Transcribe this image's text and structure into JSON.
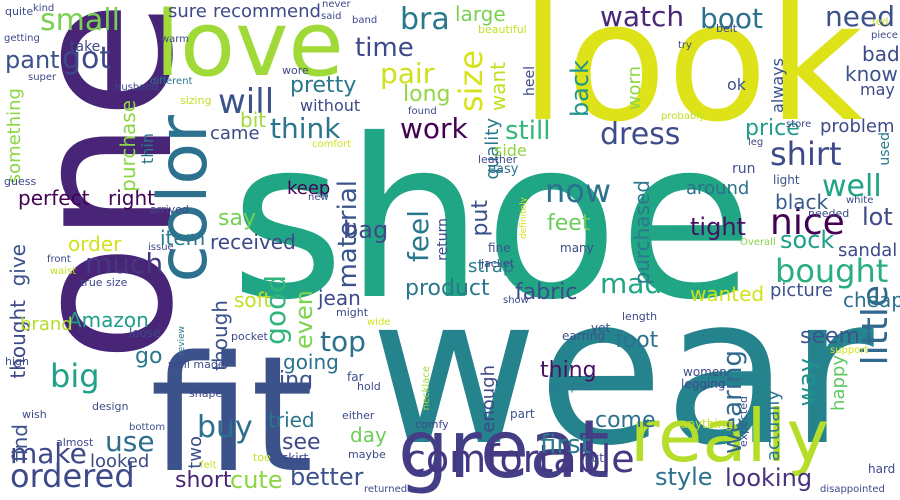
{
  "words": [
    {
      "text": "shoe",
      "color": "#21a685"
    },
    {
      "text": "wear",
      "color": "#25838e"
    },
    {
      "text": "one",
      "color": "#482576"
    },
    {
      "text": "look",
      "color": "#dde318"
    },
    {
      "text": "fit",
      "color": "#3b528b"
    },
    {
      "text": "love",
      "color": "#a0da39"
    },
    {
      "text": "great",
      "color": "#433e85"
    },
    {
      "text": "really",
      "color": "#b5de2b"
    },
    {
      "text": "color",
      "color": "#2c728e"
    },
    {
      "text": "comfortable",
      "color": "#453781"
    },
    {
      "text": "ordered",
      "color": "#3e4989"
    },
    {
      "text": "bought",
      "color": "#29af7f"
    },
    {
      "text": "nice",
      "color": "#440154"
    },
    {
      "text": "little",
      "color": "#31688e"
    },
    {
      "text": "good",
      "color": "#31b57b"
    },
    {
      "text": "size",
      "color": "#d8e219"
    },
    {
      "text": "dress",
      "color": "#3e4c8a"
    },
    {
      "text": "will",
      "color": "#3b528b"
    },
    {
      "text": "now",
      "color": "#2c728e"
    },
    {
      "text": "material",
      "color": "#3a548c"
    },
    {
      "text": "feel",
      "color": "#2a788e"
    },
    {
      "text": "still",
      "color": "#35b779"
    },
    {
      "text": "shirt",
      "color": "#3e4989"
    },
    {
      "text": "well",
      "color": "#20a386"
    },
    {
      "text": "top",
      "color": "#2c728e"
    },
    {
      "text": "work",
      "color": "#440154"
    },
    {
      "text": "think",
      "color": "#2a768e"
    },
    {
      "text": "pair",
      "color": "#d0e11c"
    },
    {
      "text": "time",
      "color": "#3e4a89"
    },
    {
      "text": "much",
      "color": "#453781"
    },
    {
      "text": "big",
      "color": "#1fa088"
    },
    {
      "text": "make",
      "color": "#3e4989"
    },
    {
      "text": "small",
      "color": "#7ad151"
    },
    {
      "text": "got",
      "color": "#3e4989"
    },
    {
      "text": "bra",
      "color": "#29798e"
    },
    {
      "text": "watch",
      "color": "#482878"
    },
    {
      "text": "boot",
      "color": "#2c728e"
    },
    {
      "text": "need",
      "color": "#3b528b"
    },
    {
      "text": "back",
      "color": "#1f968b"
    },
    {
      "text": "wearing",
      "color": "#306a8e"
    },
    {
      "text": "buy",
      "color": "#2e6e8e"
    },
    {
      "text": "made",
      "color": "#22a785"
    },
    {
      "text": "use",
      "color": "#2e6d8e"
    },
    {
      "text": "first",
      "color": "#287c8e"
    },
    {
      "text": "feet",
      "color": "#6ccd5a"
    },
    {
      "text": "even",
      "color": "#7fd34e"
    },
    {
      "text": "style",
      "color": "#2d718e"
    },
    {
      "text": "looking",
      "color": "#46327e"
    },
    {
      "text": "better",
      "color": "#3b528b"
    },
    {
      "text": "short",
      "color": "#482475"
    },
    {
      "text": "cute",
      "color": "#8bd646"
    },
    {
      "text": "see",
      "color": "#3e4a89"
    },
    {
      "text": "day",
      "color": "#6ece58"
    },
    {
      "text": "come",
      "color": "#2d708e"
    },
    {
      "text": "tried",
      "color": "#2a768e"
    },
    {
      "text": "thing",
      "color": "#471063"
    },
    {
      "text": "foot",
      "color": "#2c728e"
    },
    {
      "text": "product",
      "color": "#2a788e"
    },
    {
      "text": "fabric",
      "color": "#3e4989"
    },
    {
      "text": "tight",
      "color": "#471164"
    },
    {
      "text": "black",
      "color": "#375a8c"
    },
    {
      "text": "sock",
      "color": "#1f9e89"
    },
    {
      "text": "way",
      "color": "#20928c"
    },
    {
      "text": "seem",
      "color": "#3b528b"
    },
    {
      "text": "price",
      "color": "#1f9e89"
    },
    {
      "text": "right",
      "color": "#440154"
    },
    {
      "text": "perfect",
      "color": "#440154"
    },
    {
      "text": "item",
      "color": "#2a788e"
    },
    {
      "text": "order",
      "color": "#d2e21b"
    },
    {
      "text": "received",
      "color": "#3e4989"
    },
    {
      "text": "say",
      "color": "#73d056"
    },
    {
      "text": "Amazon",
      "color": "#1f9e89"
    },
    {
      "text": "ring",
      "color": "#3b528b"
    },
    {
      "text": "go",
      "color": "#2a788e"
    },
    {
      "text": "bag",
      "color": "#3e4a89"
    },
    {
      "text": "pretty",
      "color": "#2a788e"
    },
    {
      "text": "pant",
      "color": "#3b528b"
    },
    {
      "text": "quality",
      "color": "#2a788e"
    },
    {
      "text": "long",
      "color": "#8fd744"
    },
    {
      "text": "want",
      "color": "#c2df23"
    },
    {
      "text": "put",
      "color": "#3b528b"
    },
    {
      "text": "strap",
      "color": "#287c8e"
    },
    {
      "text": "jean",
      "color": "#3e4989"
    },
    {
      "text": "wanted",
      "color": "#d2e21b"
    },
    {
      "text": "problem",
      "color": "#3e4a89"
    },
    {
      "text": "cheap",
      "color": "#2c728e"
    },
    {
      "text": "know",
      "color": "#3b528b"
    },
    {
      "text": "lot",
      "color": "#3e4989"
    },
    {
      "text": "happy",
      "color": "#5ec962"
    },
    {
      "text": "actually",
      "color": "#2a788e"
    },
    {
      "text": "always",
      "color": "#3b528b"
    },
    {
      "text": "bad",
      "color": "#3e4989"
    },
    {
      "text": "may",
      "color": "#3e4989"
    },
    {
      "text": "around",
      "color": "#2c728e"
    },
    {
      "text": "sandal",
      "color": "#3e4989"
    },
    {
      "text": "picture",
      "color": "#3b528b"
    },
    {
      "text": "large",
      "color": "#7ad151"
    },
    {
      "text": "keep",
      "color": "#440154"
    },
    {
      "text": "soft",
      "color": "#c0df25"
    },
    {
      "text": "though",
      "color": "#3b528b"
    },
    {
      "text": "going",
      "color": "#2c728e"
    },
    {
      "text": "enough",
      "color": "#3e4989"
    },
    {
      "text": "came",
      "color": "#3e4a89"
    },
    {
      "text": "bit",
      "color": "#a2da37"
    },
    {
      "text": "purchase",
      "color": "#8bd646"
    },
    {
      "text": "purchased",
      "color": "#2a788e"
    },
    {
      "text": "worn",
      "color": "#8fd744"
    },
    {
      "text": "something",
      "color": "#8bd646"
    },
    {
      "text": "thought",
      "color": "#3e4989"
    },
    {
      "text": "give",
      "color": "#3b528b"
    },
    {
      "text": "find",
      "color": "#3b528b"
    },
    {
      "text": "brand",
      "color": "#b5de2b"
    },
    {
      "text": "two",
      "color": "#3b528b"
    },
    {
      "text": "looked",
      "color": "#3e4989"
    },
    {
      "text": "recommend",
      "color": "#3e4989"
    },
    {
      "text": "sure",
      "color": "#3e4989"
    },
    {
      "text": "without",
      "color": "#3e4989"
    },
    {
      "text": "take",
      "color": "#3e4989"
    },
    {
      "text": "ok",
      "color": "#3b528b"
    },
    {
      "text": "heel",
      "color": "#3e4989"
    },
    {
      "text": "thin",
      "color": "#2a788e"
    },
    {
      "text": "return",
      "color": "#3e4a89"
    },
    {
      "text": "side",
      "color": "#8fd744"
    },
    {
      "text": "easy",
      "color": "#2c728e"
    },
    {
      "text": "run",
      "color": "#3b528b"
    },
    {
      "text": "light",
      "color": "#3b528b"
    },
    {
      "text": "used",
      "color": "#2a788e"
    },
    {
      "text": "store",
      "color": "#3e4a89"
    },
    {
      "text": "comfort",
      "color": "#d2e21b"
    },
    {
      "text": "leather",
      "color": "#3e4989"
    },
    {
      "text": "fine",
      "color": "#3b528b"
    },
    {
      "text": "jacket",
      "color": "#3e4989"
    },
    {
      "text": "many",
      "color": "#3e4989"
    },
    {
      "text": "show",
      "color": "#3e4989"
    },
    {
      "text": "yet",
      "color": "#3b528b"
    },
    {
      "text": "length",
      "color": "#3e4989"
    },
    {
      "text": "earring",
      "color": "#3b528b"
    },
    {
      "text": "people",
      "color": "#2a788e"
    },
    {
      "text": "women",
      "color": "#3e4989"
    },
    {
      "text": "legging",
      "color": "#3e4989"
    },
    {
      "text": "anything",
      "color": "#c2df23"
    },
    {
      "text": "expected",
      "color": "#3b528b"
    },
    {
      "text": "support",
      "color": "#d2e21b"
    },
    {
      "text": "hard",
      "color": "#3e4989"
    },
    {
      "text": "disappointed",
      "color": "#3e4989"
    },
    {
      "text": "cut",
      "color": "#3e4989"
    },
    {
      "text": "part",
      "color": "#3b528b"
    },
    {
      "text": "necklace",
      "color": "#a2da37"
    },
    {
      "text": "hold",
      "color": "#3e4989"
    },
    {
      "text": "far",
      "color": "#3b528b"
    },
    {
      "text": "either",
      "color": "#3e4989"
    },
    {
      "text": "comfy",
      "color": "#3e4989"
    },
    {
      "text": "maybe",
      "color": "#3e4989"
    },
    {
      "text": "returned",
      "color": "#3e4989"
    },
    {
      "text": "skirt",
      "color": "#3e4989"
    },
    {
      "text": "toe",
      "color": "#c2df23"
    },
    {
      "text": "felt",
      "color": "#c2df23"
    },
    {
      "text": "might",
      "color": "#3e4989"
    },
    {
      "text": "wide",
      "color": "#d2e21b"
    },
    {
      "text": "pocket",
      "color": "#3e4989"
    },
    {
      "text": "review",
      "color": "#2a788e"
    },
    {
      "text": "loose",
      "color": "#3e4989"
    },
    {
      "text": "well made",
      "color": "#3e4989"
    },
    {
      "text": "shape",
      "color": "#3e4989"
    },
    {
      "text": "design",
      "color": "#3e4989"
    },
    {
      "text": "bottom",
      "color": "#3b528b"
    },
    {
      "text": "almost",
      "color": "#3e4989"
    },
    {
      "text": "wish",
      "color": "#3e4989"
    },
    {
      "text": "high",
      "color": "#3b528b"
    },
    {
      "text": "waist",
      "color": "#c2df23"
    },
    {
      "text": "front",
      "color": "#3e4989"
    },
    {
      "text": "true size",
      "color": "#3e4989"
    },
    {
      "text": "issue",
      "color": "#3e4989"
    },
    {
      "text": "arrived",
      "color": "#3e4989"
    },
    {
      "text": "guess",
      "color": "#3e4989"
    },
    {
      "text": "new",
      "color": "#3e4989"
    },
    {
      "text": "definitely",
      "color": "#d2e21b"
    },
    {
      "text": "needed",
      "color": "#3e4989"
    },
    {
      "text": "white",
      "color": "#3e4989"
    },
    {
      "text": "Overall",
      "color": "#8bd646"
    },
    {
      "text": "leg",
      "color": "#3e4989"
    },
    {
      "text": "probably",
      "color": "#c2df23"
    },
    {
      "text": "found",
      "color": "#3e4989"
    },
    {
      "text": "wore",
      "color": "#3e4989"
    },
    {
      "text": "sizing",
      "color": "#c2df23"
    },
    {
      "text": "different",
      "color": "#2a788e"
    },
    {
      "text": "husband",
      "color": "#3e4989"
    },
    {
      "text": "warm",
      "color": "#3e4989"
    },
    {
      "text": "super",
      "color": "#3e4989"
    },
    {
      "text": "getting",
      "color": "#3e4989"
    },
    {
      "text": "quite",
      "color": "#3e4989"
    },
    {
      "text": "kind",
      "color": "#3e4989"
    },
    {
      "text": "never",
      "color": "#3e4989"
    },
    {
      "text": "said",
      "color": "#3e4989"
    },
    {
      "text": "band",
      "color": "#3e4989"
    },
    {
      "text": "beautiful",
      "color": "#c2df23"
    },
    {
      "text": "belt",
      "color": "#3e4989"
    },
    {
      "text": "try",
      "color": "#3e4989"
    },
    {
      "text": "piece",
      "color": "#3e4989"
    },
    {
      "text": "red",
      "color": "#c2df23"
    }
  ]
}
